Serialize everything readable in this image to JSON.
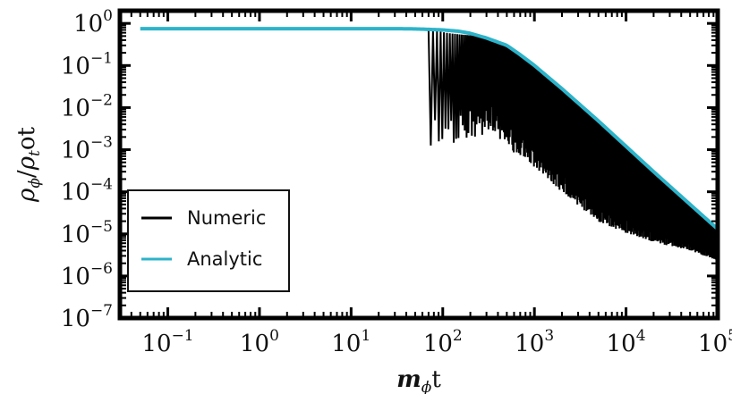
{
  "chart_data": {
    "type": "line",
    "title": "",
    "xlabel": "m_ϕt",
    "ylabel": "ρ_ϕ/ρ_tot",
    "xscale": "log",
    "yscale": "log",
    "xlim": [
      0.03,
      100000
    ],
    "ylim": [
      1e-07,
      2.0
    ],
    "x_tick_labels": [
      "10^-1",
      "10^0",
      "10^1",
      "10^2",
      "10^3",
      "10^4",
      "10^5"
    ],
    "y_tick_labels": [
      "10^0",
      "10^-1",
      "10^-2",
      "10^-3",
      "10^-4",
      "10^-5",
      "10^-6",
      "10^-7"
    ],
    "grid": false,
    "legend_position": "lower-left",
    "series": [
      {
        "name": "Numeric",
        "color": "#000000",
        "envelope_upper": {
          "x": [
            0.05,
            10,
            30,
            50,
            70,
            90,
            120,
            150,
            200,
            300,
            500,
            700,
            1000,
            2000,
            5000,
            10000,
            20000,
            50000,
            100000
          ],
          "y": [
            0.75,
            0.75,
            0.75,
            0.74,
            0.7,
            0.65,
            0.58,
            0.55,
            0.52,
            0.45,
            0.3,
            0.18,
            0.1,
            0.028,
            0.0048,
            0.0012,
            0.0003,
            5e-05,
            1.3e-05
          ]
        },
        "dips": {
          "x": [
            120,
            200,
            270,
            330,
            400,
            500,
            600,
            700,
            800,
            1000,
            2000,
            5000,
            10000,
            20000,
            50000,
            90000
          ],
          "y": [
            0.0006,
            0.001,
            0.0012,
            0.0015,
            0.001,
            0.0008,
            0.0004,
            0.00035,
            0.0003,
            0.0002,
            5e-05,
            1e-05,
            6e-06,
            4e-06,
            3e-06,
            2e-06
          ]
        }
      },
      {
        "name": "Analytic",
        "color": "#2db3c9",
        "x": [
          0.05,
          10,
          30,
          50,
          100,
          150,
          200,
          300,
          500,
          700,
          1000,
          2000,
          5000,
          10000,
          20000,
          50000,
          100000
        ],
        "y": [
          0.75,
          0.75,
          0.75,
          0.74,
          0.7,
          0.65,
          0.58,
          0.45,
          0.3,
          0.18,
          0.1,
          0.028,
          0.0048,
          0.0012,
          0.0003,
          5e-05,
          1.3e-05
        ]
      }
    ]
  }
}
